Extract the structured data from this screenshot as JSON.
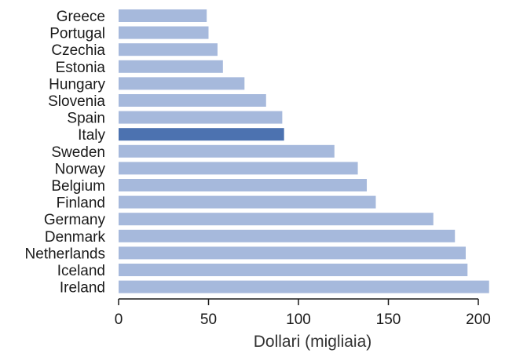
{
  "chart_data": {
    "type": "bar",
    "orientation": "horizontal",
    "title": "",
    "xlabel": "Dollari (migliaia)",
    "ylabel": "",
    "xlim": [
      0,
      207
    ],
    "xticks": [
      0,
      50,
      100,
      150,
      200
    ],
    "grid": false,
    "legend": "none",
    "categories": [
      "Greece",
      "Portugal",
      "Czechia",
      "Estonia",
      "Hungary",
      "Slovenia",
      "Spain",
      "Italy",
      "Sweden",
      "Norway",
      "Belgium",
      "Finland",
      "Germany",
      "Denmark",
      "Netherlands",
      "Iceland",
      "Ireland"
    ],
    "values": [
      49,
      50,
      55,
      58,
      70,
      82,
      91,
      92,
      120,
      133,
      138,
      143,
      175,
      187,
      193,
      194,
      206
    ],
    "highlight": "Italy",
    "colors": {
      "bar": "#a6b9dc",
      "highlight": "#4c72b0"
    }
  }
}
